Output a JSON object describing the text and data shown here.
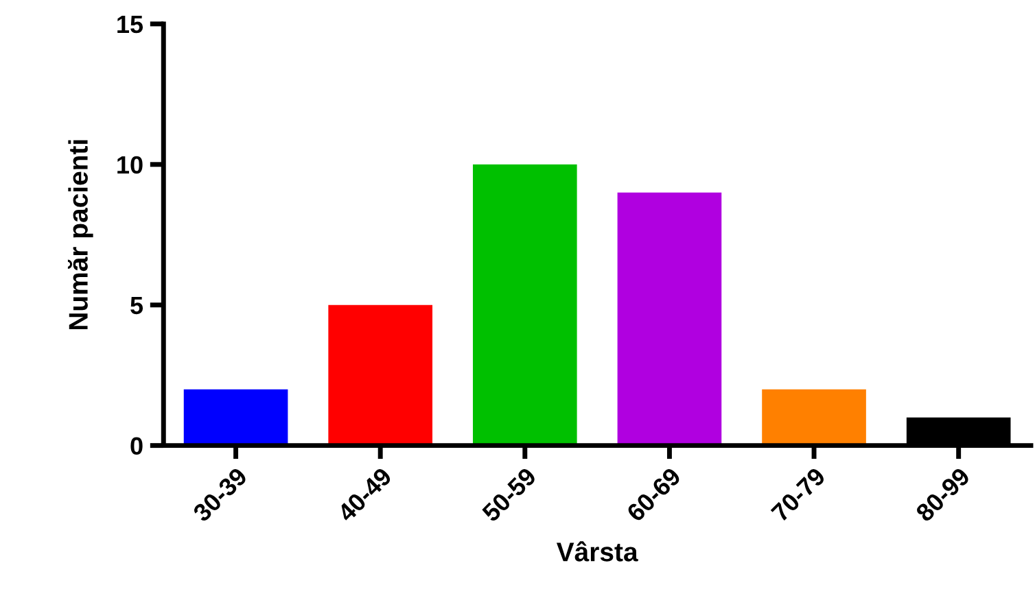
{
  "chart_data": {
    "type": "bar",
    "xlabel": "Vârsta",
    "ylabel": "Număr pacienti",
    "categories": [
      "30-39",
      "40-49",
      "50-59",
      "60-69",
      "70-79",
      "80-99"
    ],
    "values": [
      2,
      5,
      10,
      9,
      2,
      1
    ],
    "colors": [
      "#0000ff",
      "#ff0000",
      "#00c000",
      "#b000e0",
      "#ff8000",
      "#000000"
    ],
    "ylim": [
      0,
      15
    ],
    "yticks": [
      0,
      5,
      10,
      15
    ],
    "grid": false,
    "legend": false
  }
}
